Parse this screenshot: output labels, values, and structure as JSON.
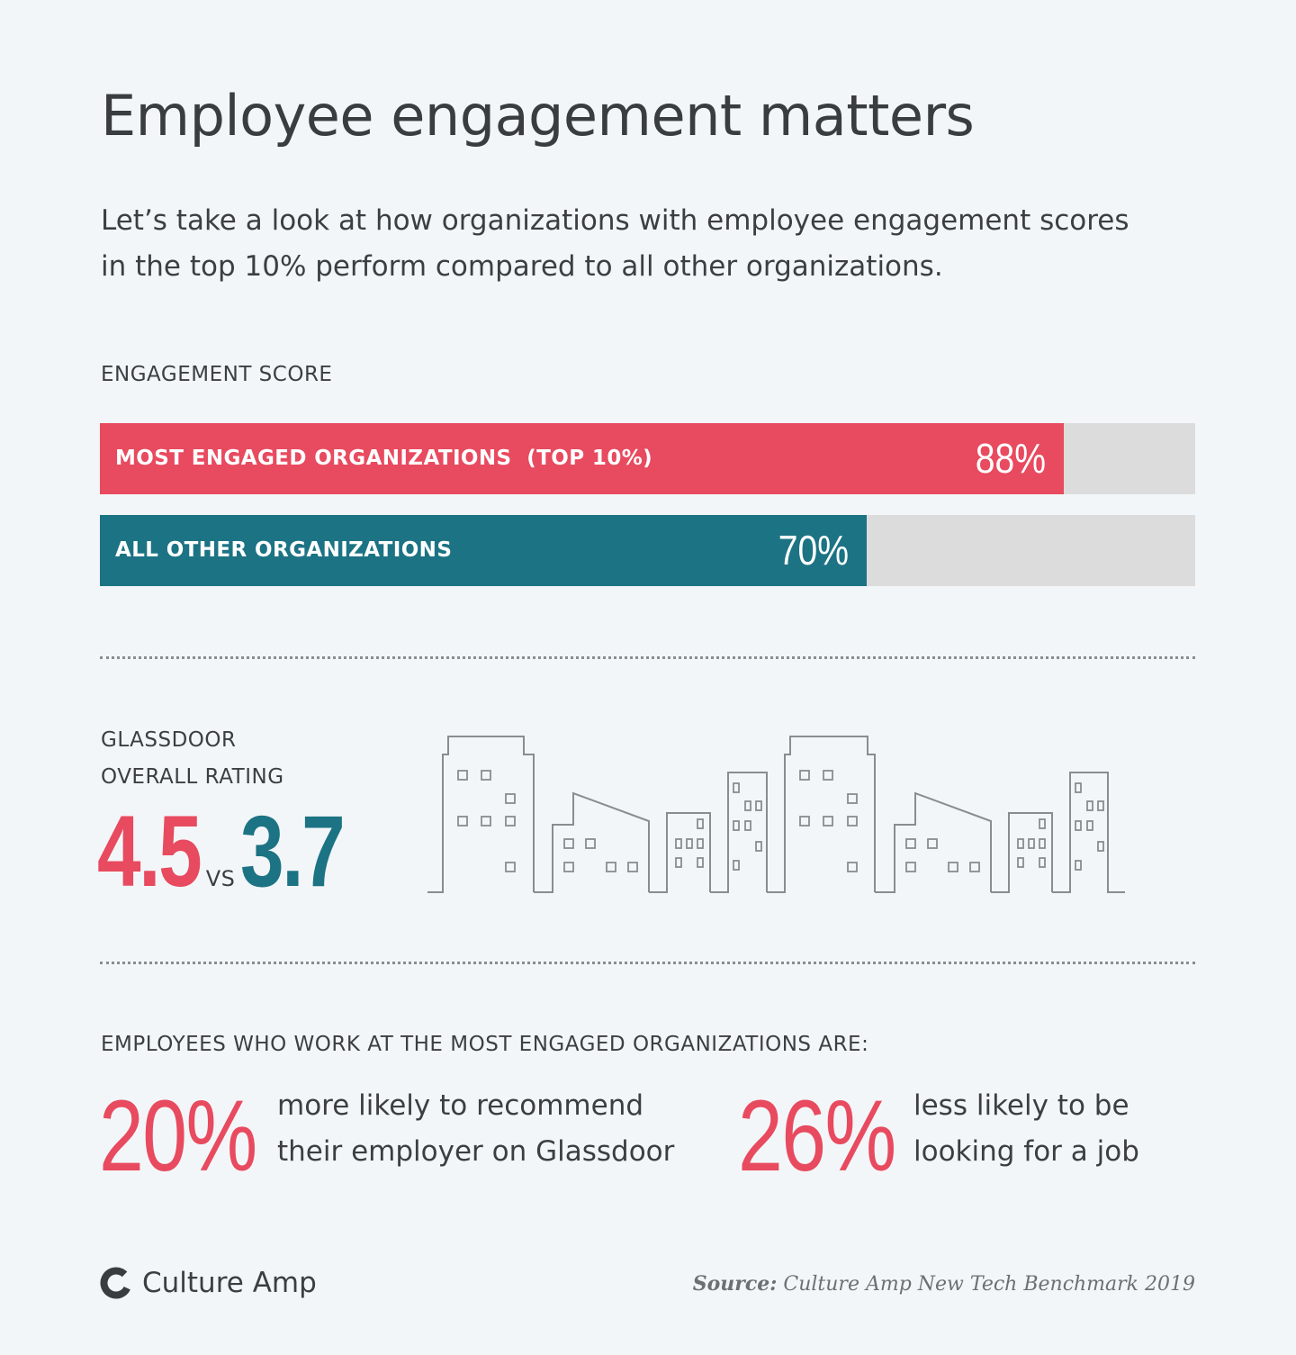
{
  "header": {
    "title": "Employee engagement matters",
    "subtitle": "Let’s take a look at how organizations with employee engagement scores in the top 10% perform compared to all other organizations."
  },
  "engagement": {
    "label": "ENGAGEMENT SCORE"
  },
  "glassdoor": {
    "label_line1": "GLASSDOOR",
    "label_line2": "OVERALL RATING",
    "value_top": "4.5",
    "vs": "VS",
    "value_others": "3.7"
  },
  "employees": {
    "heading": "EMPLOYEES WHO WORK AT THE MOST ENGAGED ORGANIZATIONS ARE:",
    "stats": [
      {
        "value": "20%",
        "text_line1": "more likely to recommend",
        "text_line2": "their employer on Glassdoor"
      },
      {
        "value": "26%",
        "text_line1": "less likely to be",
        "text_line2": "looking for a job"
      }
    ]
  },
  "footer": {
    "logo_text": "Culture Amp",
    "source_label": "Source:",
    "source_text": "Culture Amp New Tech Benchmark 2019"
  },
  "colors": {
    "top": "#e84a5f",
    "others": "#1c7384",
    "track": "#dcdcdc",
    "building_stroke": "#8a8d90"
  },
  "icons": [
    "culture-amp-logo-icon",
    "city-skyline-illustration"
  ],
  "chart_data": [
    {
      "type": "bar",
      "title": "ENGAGEMENT SCORE",
      "categories": [
        "MOST ENGAGED ORGANIZATIONS  (TOP 10%)",
        "ALL OTHER ORGANIZATIONS"
      ],
      "values": [
        88,
        70
      ],
      "value_labels": [
        "88%",
        "70%"
      ],
      "orientation": "horizontal",
      "ylim": [
        0,
        100
      ]
    }
  ]
}
